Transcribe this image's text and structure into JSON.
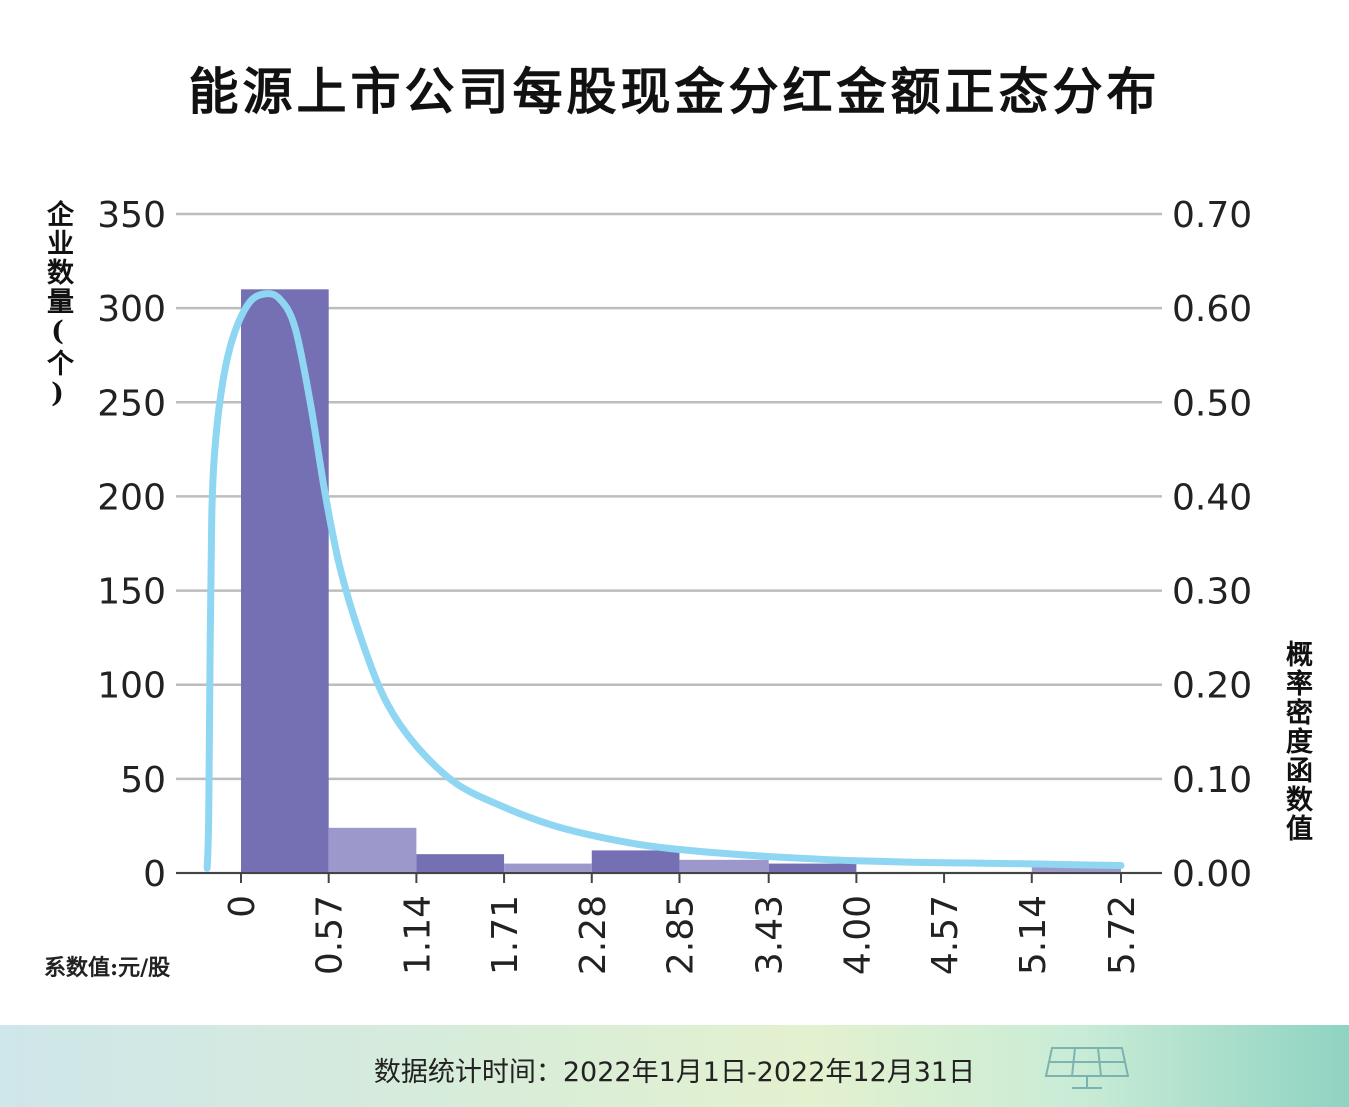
{
  "title": "能源上市公司每股现金分红金额正态分布",
  "left_axis_label": "企业数量(个)",
  "right_axis_label": "概率密度函数值",
  "unit_note": "系数值:元/股",
  "footer": "数据统计时间：2022年1月1日-2022年12月31日",
  "colors": {
    "bar_dark": "#7470b3",
    "bar_light": "#9d98cc",
    "curve": "#8ed6f2",
    "grid": "#bdbdbd",
    "text": "#222222"
  },
  "icons": {
    "footer_decor": "solar-panel-icon"
  },
  "chart_data": {
    "type": "bar",
    "title": "能源上市公司每股现金分红金额正态分布",
    "xlabel": "系数值:元/股",
    "ylabel": "企业数量(个)",
    "y2label": "概率密度函数值",
    "x_ticks": [
      "0",
      "0.57",
      "1.14",
      "1.71",
      "2.28",
      "2.85",
      "3.43",
      "4.00",
      "4.57",
      "5.14",
      "5.72"
    ],
    "bins": [
      {
        "from": 0,
        "to": 0.57,
        "count": 310,
        "shade": "dark"
      },
      {
        "from": 0.57,
        "to": 1.14,
        "count": 24,
        "shade": "light"
      },
      {
        "from": 1.14,
        "to": 1.71,
        "count": 10,
        "shade": "dark"
      },
      {
        "from": 1.71,
        "to": 2.28,
        "count": 5,
        "shade": "light"
      },
      {
        "from": 2.28,
        "to": 2.85,
        "count": 12,
        "shade": "dark"
      },
      {
        "from": 2.85,
        "to": 3.43,
        "count": 7,
        "shade": "light"
      },
      {
        "from": 3.43,
        "to": 4.0,
        "count": 5,
        "shade": "dark"
      },
      {
        "from": 4.0,
        "to": 4.57,
        "count": 0,
        "shade": "light"
      },
      {
        "from": 4.57,
        "to": 5.14,
        "count": 0,
        "shade": "dark"
      },
      {
        "from": 5.14,
        "to": 5.72,
        "count": 5,
        "shade": "light"
      }
    ],
    "ylim": [
      0,
      350
    ],
    "y_ticks": [
      0,
      50,
      100,
      150,
      200,
      250,
      300,
      350
    ],
    "y2lim": [
      0,
      0.7
    ],
    "y2_ticks": [
      "0.00",
      "0.10",
      "0.20",
      "0.30",
      "0.40",
      "0.50",
      "0.60",
      "0.70"
    ],
    "density_curve": {
      "name": "",
      "points": [
        [
          -0.22,
          0.005
        ],
        [
          -0.21,
          0.06
        ],
        [
          -0.2,
          0.25
        ],
        [
          -0.19,
          0.38
        ],
        [
          -0.17,
          0.45
        ],
        [
          -0.12,
          0.52
        ],
        [
          -0.05,
          0.57
        ],
        [
          0.05,
          0.605
        ],
        [
          0.15,
          0.615
        ],
        [
          0.25,
          0.61
        ],
        [
          0.35,
          0.58
        ],
        [
          0.45,
          0.5
        ],
        [
          0.55,
          0.4
        ],
        [
          0.65,
          0.32
        ],
        [
          0.8,
          0.24
        ],
        [
          0.95,
          0.18
        ],
        [
          1.14,
          0.135
        ],
        [
          1.4,
          0.095
        ],
        [
          1.71,
          0.07
        ],
        [
          2.0,
          0.052
        ],
        [
          2.28,
          0.04
        ],
        [
          2.6,
          0.03
        ],
        [
          2.85,
          0.025
        ],
        [
          3.2,
          0.02
        ],
        [
          3.6,
          0.016
        ],
        [
          4.0,
          0.013
        ],
        [
          4.5,
          0.011
        ],
        [
          5.0,
          0.01
        ],
        [
          5.5,
          0.0085
        ],
        [
          5.72,
          0.008
        ]
      ]
    },
    "grid": true,
    "legend": "none"
  }
}
